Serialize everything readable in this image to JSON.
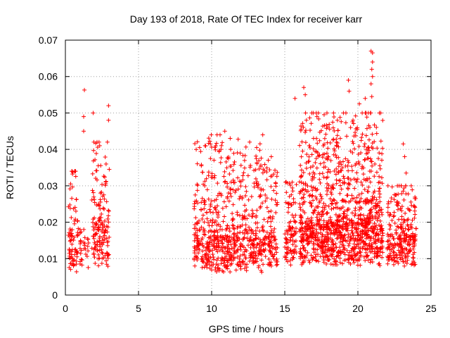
{
  "chart_data": {
    "type": "scatter",
    "title": "Day 193 of 2018, Rate Of TEC Index for receiver karr",
    "xlabel": "GPS time / hours",
    "ylabel": "ROTI / TECUs",
    "xlim": [
      0,
      25
    ],
    "ylim": [
      0,
      0.07
    ],
    "x_ticks": [
      "0",
      "5",
      "10",
      "15",
      "20",
      "25"
    ],
    "y_ticks": [
      "0",
      "0.01",
      "0.02",
      "0.03",
      "0.04",
      "0.05",
      "0.06",
      "0.07"
    ],
    "grid": true,
    "marker": "+",
    "color": "#ff0000",
    "series": [
      {
        "name": "karr",
        "clusters": [
          {
            "x": [
              0.2,
              0.9
            ],
            "base": 0.011,
            "spread": 0.008,
            "max": 0.034,
            "count": 80
          },
          {
            "x": [
              1.0,
              1.6
            ],
            "base": 0.011,
            "spread": 0.006,
            "max": 0.018,
            "count": 30
          },
          {
            "x": [
              1.8,
              3.0
            ],
            "base": 0.013,
            "spread": 0.009,
            "max": 0.042,
            "count": 160
          },
          {
            "x": [
              8.8,
              13.5
            ],
            "base": 0.011,
            "spread": 0.008,
            "max": 0.044,
            "count": 650
          },
          {
            "x": [
              13.5,
              14.5
            ],
            "base": 0.012,
            "spread": 0.007,
            "max": 0.038,
            "count": 120
          },
          {
            "x": [
              15.0,
              15.8
            ],
            "base": 0.013,
            "spread": 0.008,
            "max": 0.031,
            "count": 100
          },
          {
            "x": [
              16.0,
              21.7
            ],
            "base": 0.014,
            "spread": 0.01,
            "max": 0.05,
            "count": 1200
          },
          {
            "x": [
              22.0,
              24.0
            ],
            "base": 0.012,
            "spread": 0.007,
            "max": 0.03,
            "count": 260
          }
        ],
        "outliers": [
          {
            "x": 1.3,
            "y": 0.0563
          },
          {
            "x": 1.25,
            "y": 0.049
          },
          {
            "x": 1.25,
            "y": 0.045
          },
          {
            "x": 1.9,
            "y": 0.05
          },
          {
            "x": 2.95,
            "y": 0.052
          },
          {
            "x": 2.95,
            "y": 0.048
          },
          {
            "x": 0.7,
            "y": 0.034
          },
          {
            "x": 2.3,
            "y": 0.042
          },
          {
            "x": 10.9,
            "y": 0.045
          },
          {
            "x": 15.7,
            "y": 0.054
          },
          {
            "x": 16.3,
            "y": 0.057
          },
          {
            "x": 16.4,
            "y": 0.055
          },
          {
            "x": 19.35,
            "y": 0.059
          },
          {
            "x": 19.4,
            "y": 0.056
          },
          {
            "x": 20.1,
            "y": 0.0525
          },
          {
            "x": 20.5,
            "y": 0.054
          },
          {
            "x": 20.9,
            "y": 0.067
          },
          {
            "x": 21.0,
            "y": 0.0665
          },
          {
            "x": 21.0,
            "y": 0.064
          },
          {
            "x": 20.95,
            "y": 0.062
          },
          {
            "x": 21.0,
            "y": 0.06
          },
          {
            "x": 20.9,
            "y": 0.058
          },
          {
            "x": 20.95,
            "y": 0.0545
          },
          {
            "x": 23.1,
            "y": 0.0415
          },
          {
            "x": 23.2,
            "y": 0.038
          },
          {
            "x": 23.3,
            "y": 0.0335
          },
          {
            "x": 23.9,
            "y": 0.0265
          },
          {
            "x": 23.95,
            "y": 0.0265
          },
          {
            "x": 17.2,
            "y": 0.049
          },
          {
            "x": 18.6,
            "y": 0.048
          },
          {
            "x": 19.5,
            "y": 0.046
          },
          {
            "x": 12.6,
            "y": 0.042
          },
          {
            "x": 11.3,
            "y": 0.04
          }
        ]
      }
    ]
  }
}
